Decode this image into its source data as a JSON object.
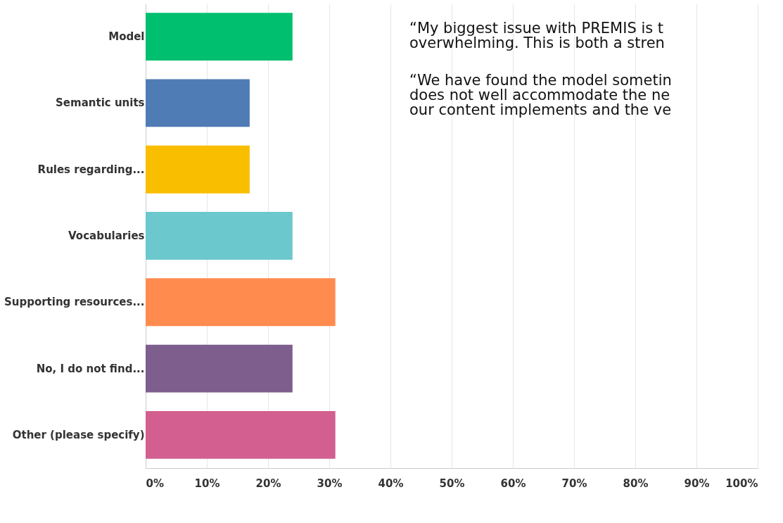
{
  "chart_data": {
    "type": "bar",
    "orientation": "horizontal",
    "categories": [
      "Model",
      "Semantic units",
      "Rules regarding...",
      "Vocabularies",
      "Supporting resources...",
      "No, I do not find...",
      "Other (please specify)"
    ],
    "values": [
      24,
      17,
      17,
      24,
      31,
      24,
      31
    ],
    "colors": [
      "#00bf6f",
      "#507cb6",
      "#f9be00",
      "#6bc8cd",
      "#ff8b4f",
      "#7d5e8d",
      "#d25f90"
    ],
    "xlim": [
      0,
      100
    ],
    "xticks": [
      {
        "value": 0,
        "label": "0%"
      },
      {
        "value": 10,
        "label": "10%"
      },
      {
        "value": 20,
        "label": "20%"
      },
      {
        "value": 30,
        "label": "30%"
      },
      {
        "value": 40,
        "label": "40%"
      },
      {
        "value": 50,
        "label": "50%"
      },
      {
        "value": 60,
        "label": "60%"
      },
      {
        "value": 70,
        "label": "70%"
      },
      {
        "value": 80,
        "label": "80%"
      },
      {
        "value": 90,
        "label": "90%"
      },
      {
        "value": 100,
        "label": "100%"
      }
    ],
    "grid": "x",
    "annotations": [
      "“My biggest issue with PREMIS is t\noverwhelming. This is both a stren",
      "“We have found the model sometin\ndoes not well accommodate the ne\nour content implements and the ve"
    ]
  }
}
